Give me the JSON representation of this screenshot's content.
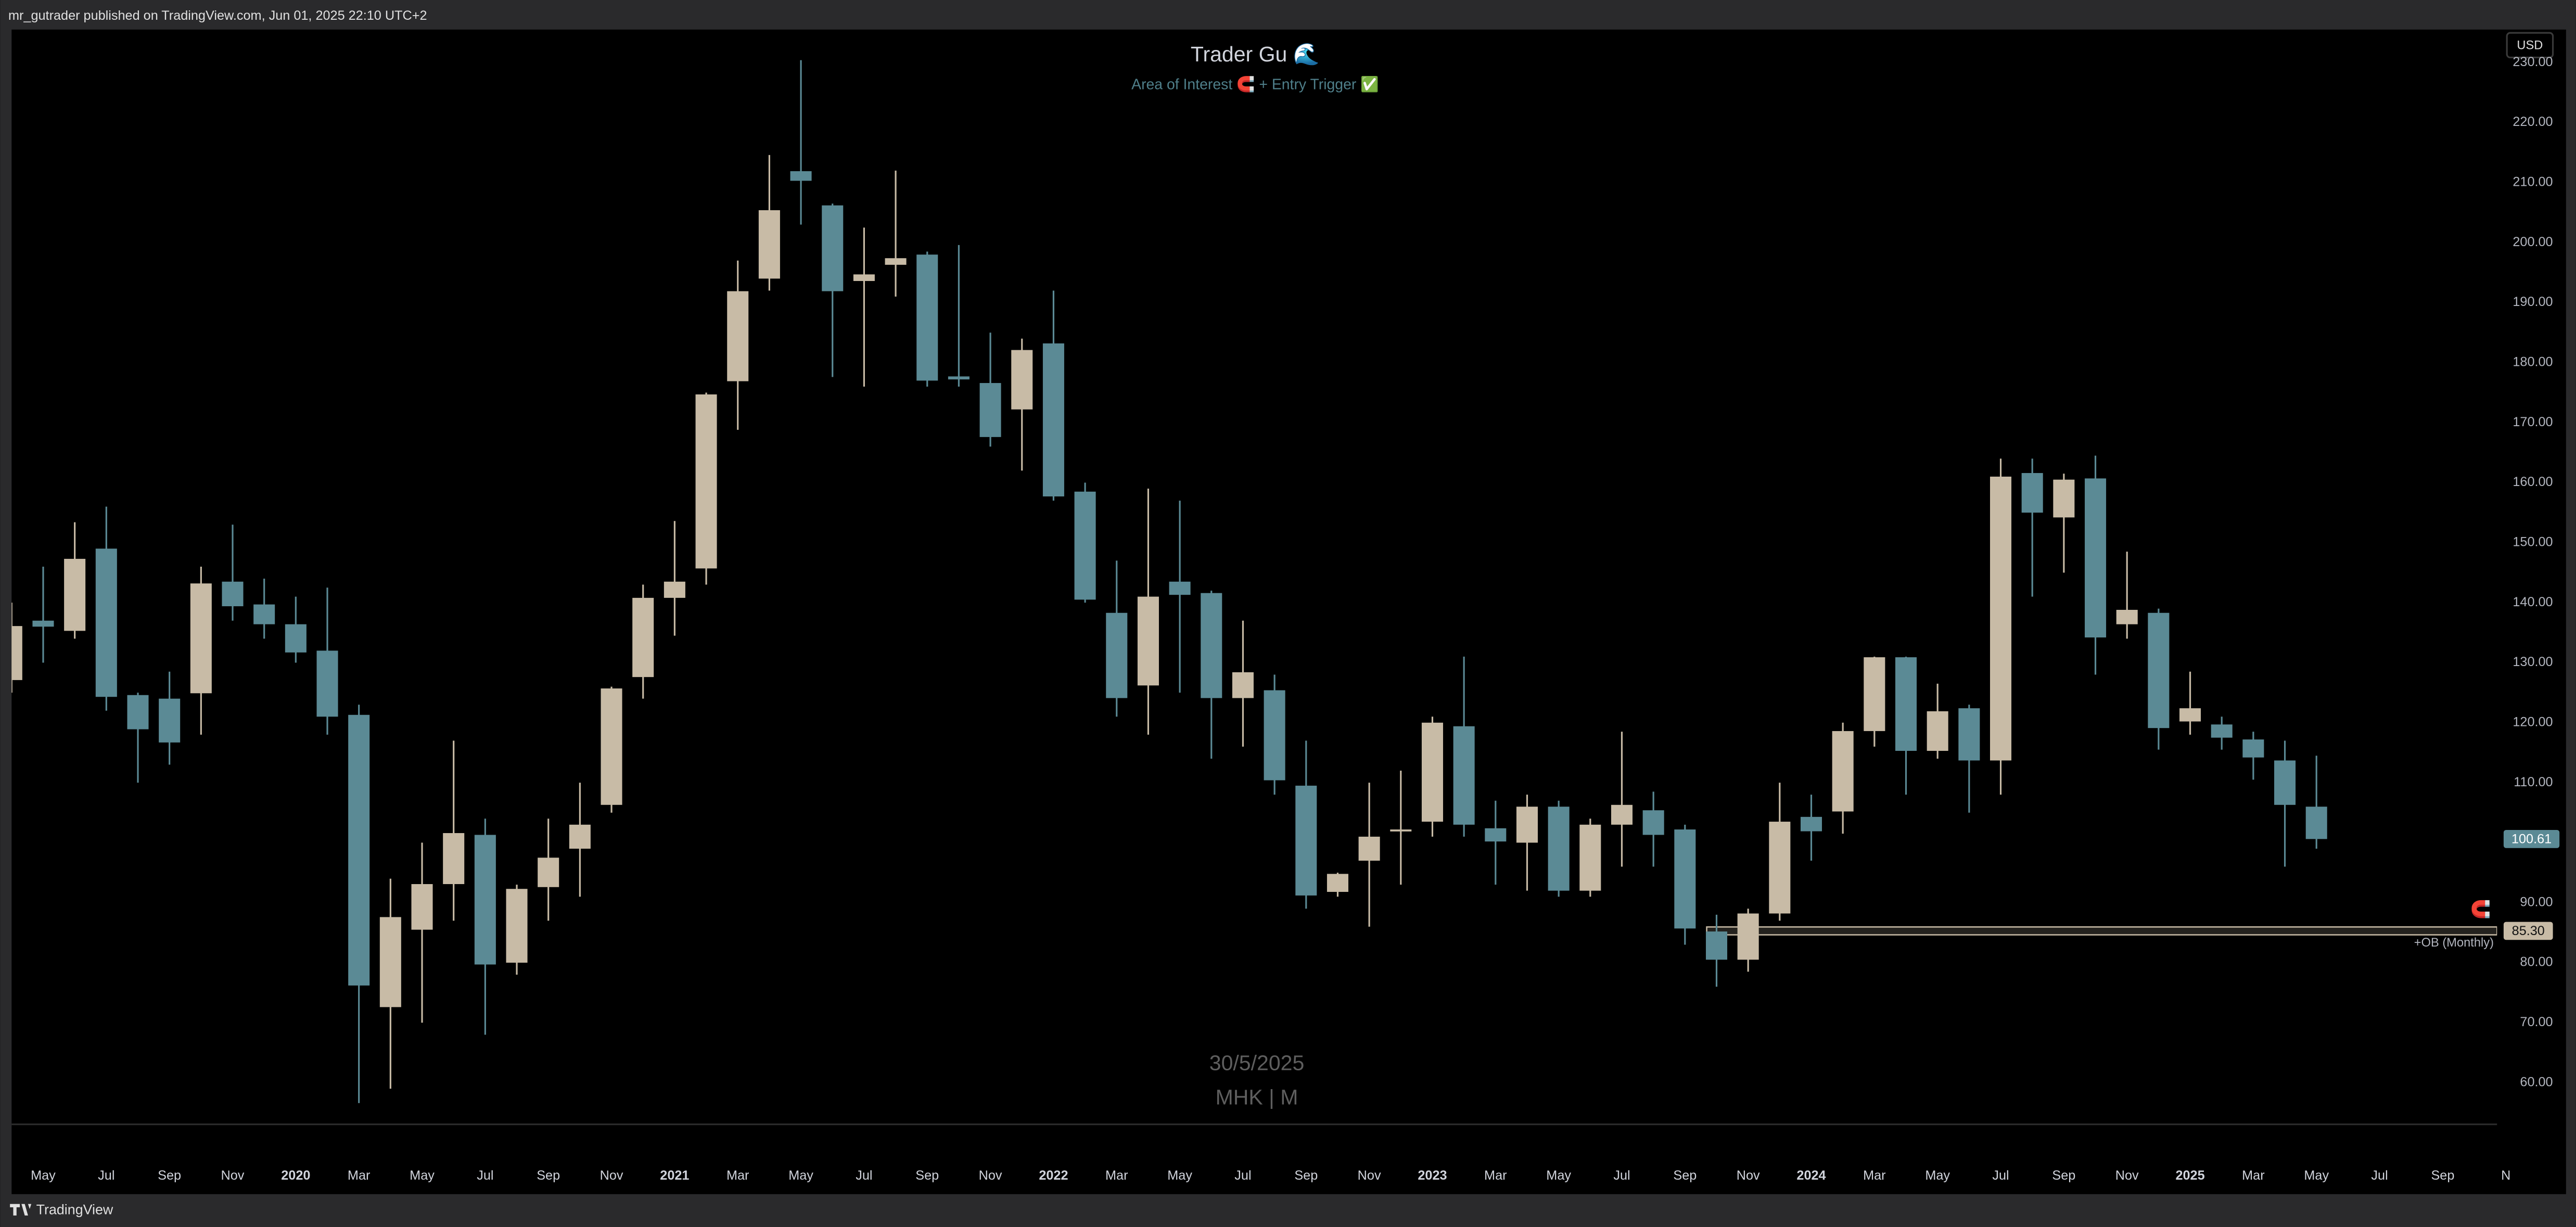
{
  "page": {
    "publisher": "mr_gutrader published on TradingView.com, Jun 01, 2025 22:10 UTC+2",
    "brand": "TradingView",
    "currency": "USD"
  },
  "chart_data": {
    "type": "candlestick",
    "title": "Trader Gu 🌊",
    "subtitle": "Area of Interest 🧲 + Entry Trigger ✅",
    "watermark_date": "30/5/2025",
    "watermark_symbol": "MHK | M",
    "up_color": "#c8bba6",
    "down_color": "#5b8a95",
    "categories": [
      null,
      "May",
      null,
      "Jul",
      null,
      "Sep",
      null,
      "Nov",
      null,
      "2020",
      null,
      "Mar",
      null,
      "May",
      null,
      "Jul",
      null,
      "Sep",
      null,
      "Nov",
      null,
      "2021",
      null,
      "Mar",
      null,
      "May",
      null,
      "Jul",
      null,
      "Sep",
      null,
      "Nov",
      null,
      "2022",
      null,
      "Mar",
      null,
      "May",
      null,
      "Jul",
      null,
      "Sep",
      null,
      "Nov",
      null,
      "2023",
      null,
      "Mar",
      null,
      "May",
      null,
      "Jul",
      null,
      "Sep",
      null,
      "Nov",
      null,
      "2024",
      null,
      "Mar",
      null,
      "May",
      null,
      "Jul",
      null,
      "Sep",
      null,
      "Nov",
      null,
      "2025",
      null,
      "Mar",
      null,
      "May",
      null,
      "Jul",
      null,
      "Sep",
      null,
      "N"
    ],
    "open": [
      127.1,
      137,
      135.3,
      149,
      124.6,
      124,
      124.9,
      143.5,
      139.7,
      136.4,
      132,
      121.3,
      72.6,
      85.5,
      93.1,
      101.3,
      80,
      92.6,
      99,
      106.3,
      127.6,
      140.8,
      145.7,
      176.9,
      194,
      211.9,
      206.2,
      193.6,
      196.3,
      198,
      177.7,
      176.6,
      172.2,
      183.2,
      158.5,
      138.3,
      126.2,
      143.5,
      141.6,
      124.1,
      125.4,
      109.5,
      91.8,
      97,
      102,
      103.5,
      119.4,
      102.4,
      100,
      106,
      92,
      103,
      105.4,
      102.2,
      85.2,
      80.5,
      88.2,
      104.3,
      105.2,
      118.6,
      130.9,
      115.3,
      122.4,
      113.7,
      161.6,
      154.2,
      160.7,
      136.4,
      138.3,
      120.2,
      119.7,
      117.2,
      113.7,
      106,
      null,
      null,
      null,
      null,
      null,
      null
    ],
    "high": [
      140,
      146,
      153.4,
      156,
      125,
      128.5,
      146,
      153,
      144,
      141,
      142.5,
      123,
      94,
      100,
      117,
      104,
      93,
      104,
      110,
      126,
      143,
      153.6,
      175,
      197,
      214.6,
      230.4,
      206.5,
      202.5,
      212,
      198.5,
      199.6,
      185,
      184,
      192,
      160,
      147,
      159,
      157,
      142,
      137,
      128,
      117,
      95,
      110,
      112,
      121,
      131,
      107,
      108,
      107,
      104,
      118.5,
      108.5,
      103,
      88,
      89,
      110,
      108,
      120,
      131,
      131,
      126.5,
      123,
      164,
      164,
      161.5,
      164.5,
      148.5,
      139,
      128.5,
      121,
      118.5,
      117,
      114.5,
      null,
      null,
      null,
      null,
      null,
      null
    ],
    "low": [
      125,
      130,
      134,
      122,
      110,
      113,
      118,
      137,
      134,
      130,
      118,
      56.6,
      59,
      70,
      87,
      68,
      78,
      87,
      91,
      105,
      124,
      134.5,
      143,
      168.8,
      192,
      203,
      177.6,
      176,
      191,
      176,
      176,
      166,
      162,
      157,
      140,
      121,
      118,
      125,
      114,
      116,
      108,
      89,
      91,
      86,
      93,
      101,
      101,
      93,
      92,
      91,
      91,
      96,
      96,
      83,
      76,
      78.5,
      87,
      97,
      101.5,
      116,
      108,
      114,
      105,
      108,
      141,
      145,
      128,
      134,
      115.5,
      118,
      115.5,
      110.5,
      96,
      99,
      null,
      null,
      null,
      null,
      null,
      null
    ],
    "close": [
      136.1,
      136,
      147.3,
      124.3,
      118.9,
      116.7,
      143.2,
      139.4,
      136.4,
      131.7,
      121,
      76.2,
      87.6,
      93.1,
      101.6,
      79.7,
      92.3,
      97.5,
      103,
      125.7,
      140.8,
      143.5,
      174.7,
      191.9,
      205.4,
      210.3,
      191.9,
      194.7,
      197.4,
      177,
      177.2,
      167.6,
      182.1,
      157.7,
      140.5,
      124.1,
      141,
      141.3,
      124.1,
      128.4,
      110.4,
      91.2,
      94.8,
      101,
      102.2,
      120,
      103,
      100.2,
      106,
      92,
      103,
      106.3,
      101.3,
      85.7,
      80.5,
      88.2,
      103.5,
      101.9,
      118.6,
      130.9,
      115.3,
      121.9,
      113.7,
      161,
      155,
      160.5,
      134.2,
      138.8,
      119.1,
      122.4,
      117.5,
      114.2,
      106.3,
      100.61,
      null,
      null,
      null,
      null,
      null,
      null
    ],
    "ylim": [
      53.2,
      235.5
    ],
    "yticks": [
      {
        "value": 60,
        "label": "60.00"
      },
      {
        "value": 70,
        "label": "70.00"
      },
      {
        "value": 80,
        "label": "80.00"
      },
      {
        "value": 90,
        "label": "90.00"
      },
      {
        "value": 100,
        "label": "100.00"
      },
      {
        "value": 110,
        "label": "110.00"
      },
      {
        "value": 120,
        "label": "120.00"
      },
      {
        "value": 130,
        "label": "130.00"
      },
      {
        "value": 140,
        "label": "140.00"
      },
      {
        "value": 150,
        "label": "150.00"
      },
      {
        "value": 160,
        "label": "160.00"
      },
      {
        "value": 170,
        "label": "170.00"
      },
      {
        "value": 180,
        "label": "180.00"
      },
      {
        "value": 190,
        "label": "190.00"
      },
      {
        "value": 200,
        "label": "200.00"
      },
      {
        "value": 210,
        "label": "210.00"
      },
      {
        "value": 220,
        "label": "220.00"
      },
      {
        "value": 230,
        "label": "230.00"
      }
    ],
    "last_price": {
      "value": 100.61,
      "label": "100.61"
    },
    "zone": {
      "name": "+OB (Monthly)",
      "value": 85.3,
      "label": "85.30",
      "icon": "🧲"
    },
    "grid": false
  }
}
